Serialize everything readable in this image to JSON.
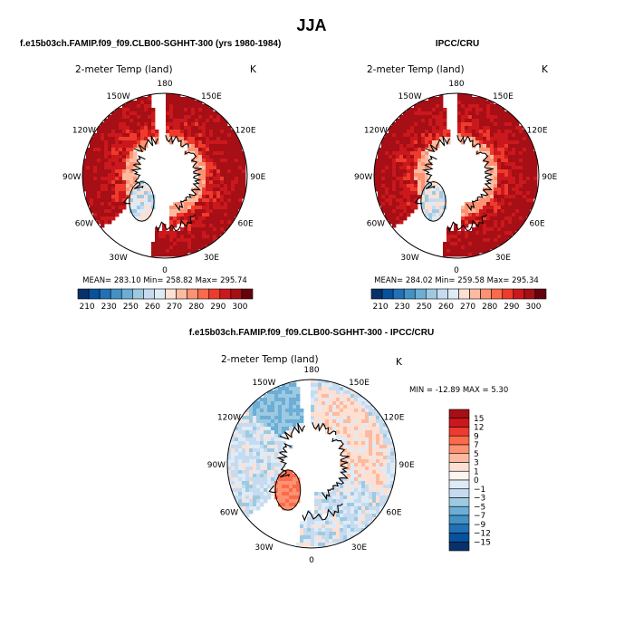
{
  "title": "JJA",
  "panels": [
    {
      "case_title": "f.e15b03ch.FAMIP.f09_f09.CLB00-SGHHT-300 (yrs 1980-1984)",
      "label_left": "2-meter Temp (land)",
      "label_right": "K",
      "stats": "MEAN= 283.10   Min= 258.82   Max= 295.74"
    },
    {
      "case_title": "IPCC/CRU",
      "label_left": "2-meter Temp (land)",
      "label_right": "K",
      "stats": "MEAN= 284.02   Min= 259.58   Max= 295.34"
    },
    {
      "case_title": "f.e15b03ch.FAMIP.f09_f09.CLB00-SGHHT-300 - IPCC/CRU",
      "label_left": "2-meter Temp (land)",
      "label_right": "K",
      "stats": "MIN = -12.89  MAX =    5.30"
    }
  ],
  "longitude_labels": [
    "180",
    "150E",
    "120E",
    "90E",
    "60E",
    "30E",
    "0",
    "30W",
    "60W",
    "90W",
    "120W",
    "150W"
  ],
  "chart_data": [
    {
      "type": "heatmap",
      "projection": "north polar stereographic",
      "variable": "2-meter Temp (land)",
      "units": "K",
      "stats": {
        "mean": 283.1,
        "min": 258.82,
        "max": 295.74
      },
      "colorbar": {
        "orientation": "horizontal",
        "levels": [
          210,
          220,
          230,
          240,
          250,
          255,
          260,
          265,
          270,
          275,
          280,
          285,
          290,
          295,
          300,
          305
        ],
        "tick_labels": [
          "210",
          "230",
          "250",
          "260",
          "270",
          "280",
          "290",
          "300"
        ],
        "colors": [
          "#08306b",
          "#08519c",
          "#2171b5",
          "#4292c6",
          "#6baed6",
          "#9ecae1",
          "#c6dbef",
          "#deebf7",
          "#fde0d2",
          "#fcbba1",
          "#fc9272",
          "#fb6a4a",
          "#ef3b2c",
          "#cb181d",
          "#a50f15",
          "#67000d"
        ]
      }
    },
    {
      "type": "heatmap",
      "projection": "north polar stereographic",
      "variable": "2-meter Temp (land)",
      "units": "K",
      "stats": {
        "mean": 284.02,
        "min": 259.58,
        "max": 295.34
      },
      "colorbar": {
        "orientation": "horizontal",
        "levels": [
          210,
          220,
          230,
          240,
          250,
          255,
          260,
          265,
          270,
          275,
          280,
          285,
          290,
          295,
          300,
          305
        ],
        "tick_labels": [
          "210",
          "230",
          "250",
          "260",
          "270",
          "280",
          "290",
          "300"
        ],
        "colors": [
          "#08306b",
          "#08519c",
          "#2171b5",
          "#4292c6",
          "#6baed6",
          "#9ecae1",
          "#c6dbef",
          "#deebf7",
          "#fde0d2",
          "#fcbba1",
          "#fc9272",
          "#fb6a4a",
          "#ef3b2c",
          "#cb181d",
          "#a50f15",
          "#67000d"
        ]
      }
    },
    {
      "type": "heatmap",
      "projection": "north polar stereographic",
      "variable": "2-meter Temp (land)",
      "units": "K",
      "stats": {
        "min": -12.89,
        "max": 5.3
      },
      "colorbar": {
        "orientation": "vertical",
        "tick_labels": [
          "15",
          "12",
          "9",
          "7",
          "5",
          "3",
          "1",
          "0",
          "-1",
          "-3",
          "-5",
          "-7",
          "-9",
          "-12",
          "-15"
        ],
        "colors": [
          "#a50f15",
          "#cb181d",
          "#ef3b2c",
          "#fb6a4a",
          "#fc9272",
          "#fcbba1",
          "#fde0d2",
          "#fff5f0",
          "#deebf7",
          "#c6dbef",
          "#9ecae1",
          "#6baed6",
          "#4292c6",
          "#2171b5",
          "#08519c",
          "#08306b"
        ]
      }
    }
  ]
}
